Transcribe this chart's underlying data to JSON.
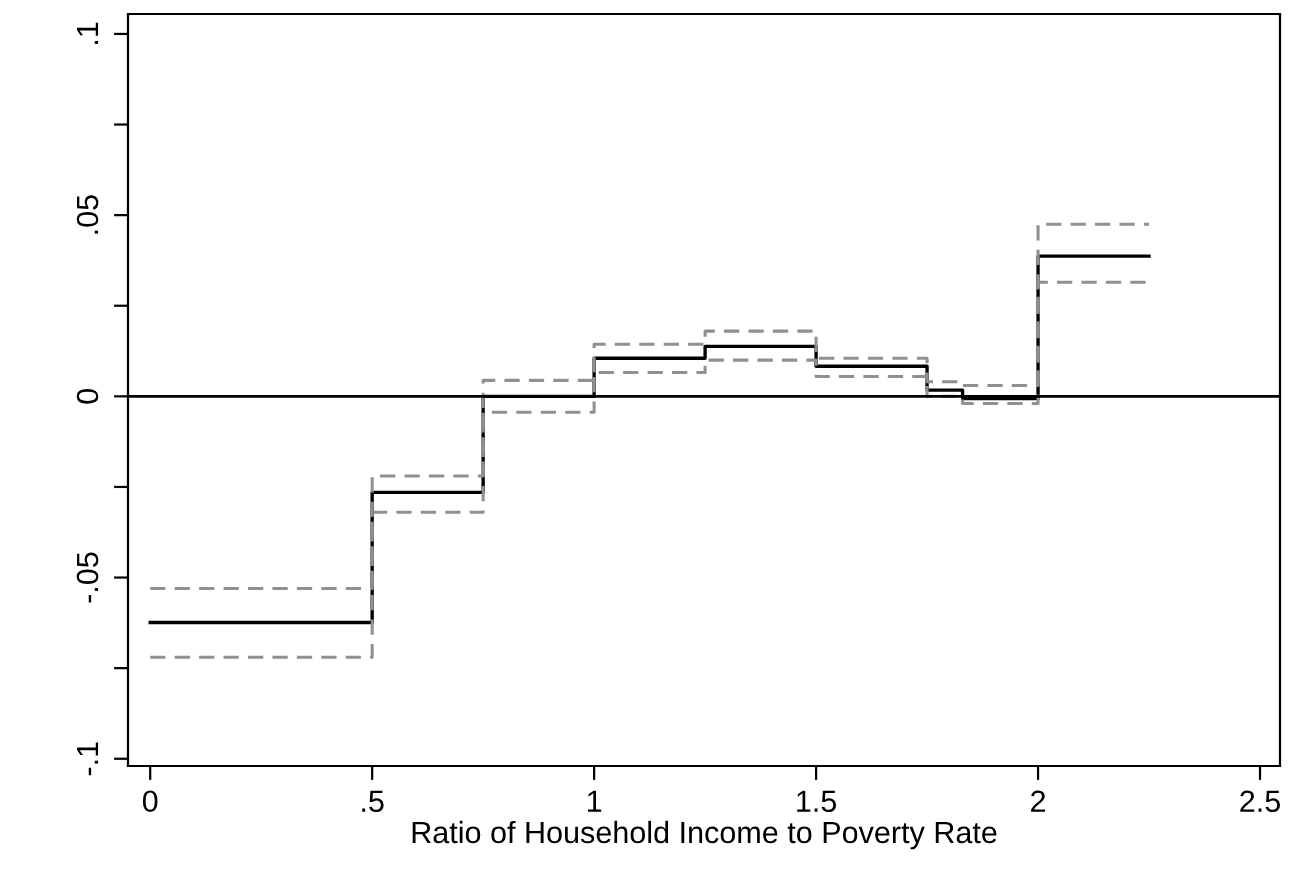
{
  "chart_data": {
    "type": "step",
    "xlabel": "Ratio of Household Income to Poverty Rate",
    "x": [
      0,
      0.5,
      0.75,
      1,
      1.25,
      1.5,
      1.75,
      1.83,
      2,
      2.25
    ],
    "series": [
      {
        "color": "#000000",
        "line_style": "solid",
        "values": [
          -0.0624,
          -0.0265,
          0.0,
          0.0105,
          0.0138,
          0.0083,
          0.0017,
          -0.0006,
          0.0387,
          0.0387
        ]
      },
      {
        "color": "#909090",
        "line_style": "dashed",
        "values": [
          -0.053,
          -0.022,
          0.0044,
          0.0144,
          0.018,
          0.0105,
          0.004,
          0.003,
          0.0475,
          0.0475
        ]
      },
      {
        "color": "#909090",
        "line_style": "dashed",
        "values": [
          -0.072,
          -0.032,
          -0.0044,
          0.0066,
          0.01,
          0.0055,
          0.0,
          -0.002,
          0.0315,
          0.0315
        ]
      }
    ],
    "xlim": [
      -0.05,
      2.545
    ],
    "ylim": [
      -0.102,
      0.1055
    ],
    "xticks": [
      {
        "value": 0,
        "label": "0"
      },
      {
        "value": 0.5,
        "label": ".5"
      },
      {
        "value": 1,
        "label": "1"
      },
      {
        "value": 1.5,
        "label": "1.5"
      },
      {
        "value": 2,
        "label": "2"
      },
      {
        "value": 2.5,
        "label": "2.5"
      }
    ],
    "yticks": [
      {
        "value": -0.1,
        "label": "-.1"
      },
      {
        "value": -0.075,
        "label": null
      },
      {
        "value": -0.05,
        "label": "-.05"
      },
      {
        "value": -0.025,
        "label": null
      },
      {
        "value": 0,
        "label": "0"
      },
      {
        "value": 0.025,
        "label": null
      },
      {
        "value": 0.05,
        "label": ".05"
      },
      {
        "value": 0.075,
        "label": null
      },
      {
        "value": 0.1,
        "label": ".1"
      }
    ],
    "ref_lines": [
      {
        "axis": "y",
        "value": 0,
        "color": "#000000"
      }
    ],
    "grid": false
  }
}
